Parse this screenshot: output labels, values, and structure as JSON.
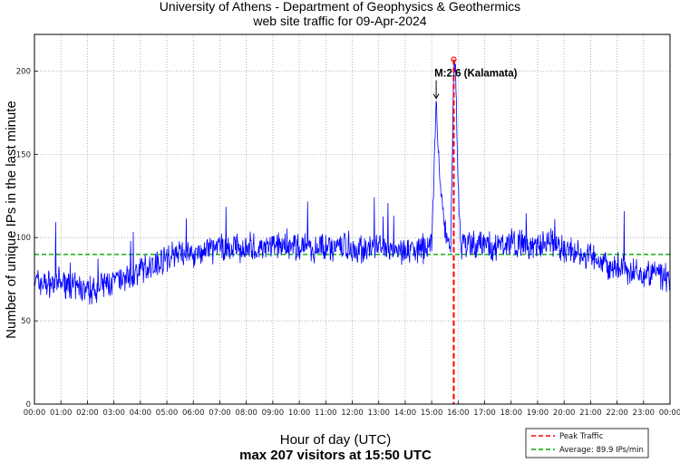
{
  "chart_data": {
    "type": "line",
    "title": "University of Athens - Department of Geophysics & Geothermics",
    "subtitle": "web site traffic for 09-Apr-2024",
    "xlabel": "Hour of day (UTC)",
    "footer": "max 207 visitors at 15:50 UTC",
    "ylabel": "Number of unique IPs in the last minute",
    "xlim": [
      0,
      24
    ],
    "ylim": [
      0,
      222
    ],
    "yticks": [
      0,
      50,
      100,
      150,
      200
    ],
    "xticks": [
      "00:00",
      "01:00",
      "02:00",
      "03:00",
      "04:00",
      "05:00",
      "06:00",
      "07:00",
      "08:00",
      "09:00",
      "10:00",
      "11:00",
      "12:00",
      "13:00",
      "14:00",
      "15:00",
      "16:00",
      "17:00",
      "18:00",
      "19:00",
      "20:00",
      "21:00",
      "22:00",
      "23:00",
      "00:00"
    ],
    "grid": true,
    "series": [
      {
        "name": "",
        "color": "#0000ff",
        "x": [
          0,
          0.5,
          1,
          1.5,
          2,
          2.5,
          3,
          3.5,
          4,
          4.5,
          5,
          5.5,
          6,
          6.5,
          7,
          7.5,
          8,
          8.5,
          9,
          9.5,
          10,
          10.5,
          11,
          11.5,
          12,
          12.5,
          13,
          13.5,
          14,
          14.5,
          15,
          15.17,
          15.3,
          15.5,
          15.67,
          15.72,
          15.83,
          15.9,
          16,
          16.1,
          16.3,
          16.5,
          17,
          17.5,
          18,
          18.5,
          19,
          19.5,
          20,
          20.5,
          21,
          21.5,
          22,
          22.5,
          23,
          23.5,
          24
        ],
        "y": [
          74,
          72,
          73,
          70,
          68,
          71,
          73,
          76,
          80,
          84,
          88,
          91,
          90,
          92,
          94,
          93,
          95,
          93,
          95,
          96,
          94,
          93,
          95,
          94,
          94,
          93,
          94,
          92,
          93,
          92,
          96,
          183,
          135,
          105,
          95,
          98,
          200,
          205,
          130,
          95,
          97,
          95,
          96,
          94,
          98,
          95,
          94,
          97,
          93,
          90,
          89,
          83,
          82,
          79,
          79,
          78,
          74
        ]
      }
    ],
    "peak": {
      "name": "Peak Traffic",
      "x": 15.833,
      "y": 207,
      "color": "#ff0000"
    },
    "average": {
      "name": "Average: 89.9 IPs/min",
      "value": 89.9,
      "color": "#00aa00"
    },
    "annotations": [
      {
        "text": "M:2.6 (Kalamata)",
        "x": 15.17,
        "y": 183
      }
    ],
    "legend_position": "bottom-right"
  }
}
